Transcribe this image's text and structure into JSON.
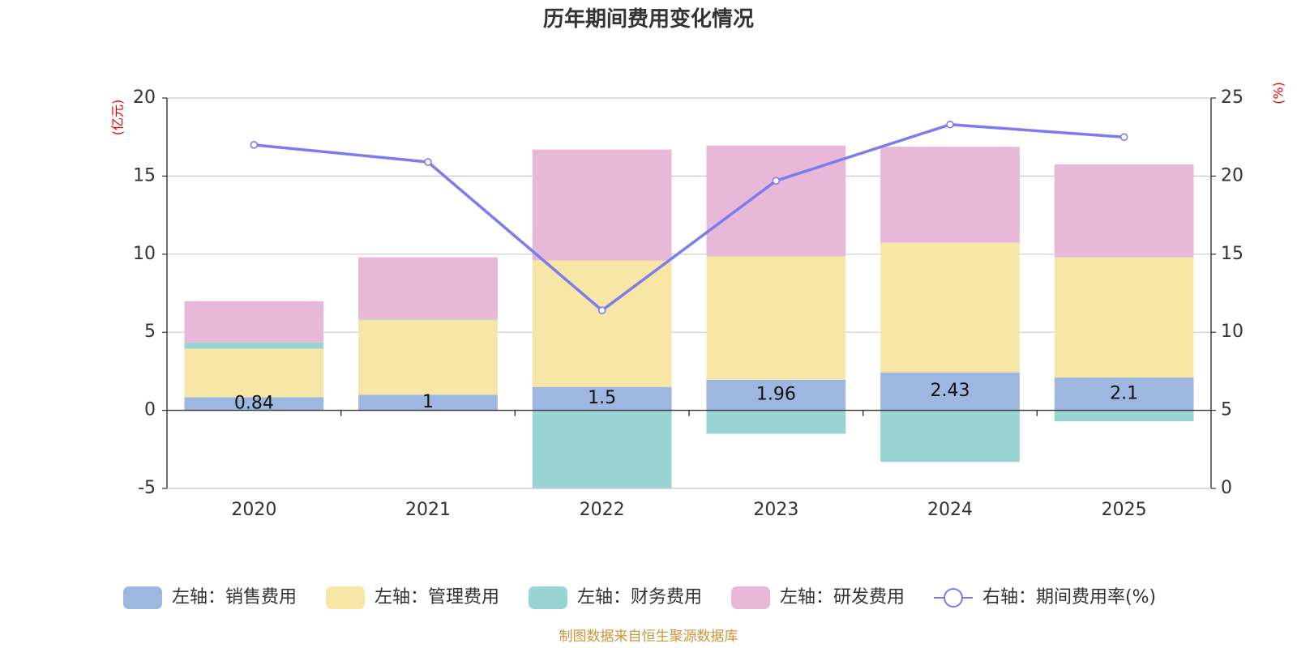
{
  "chart_data": {
    "type": "bar",
    "title": "历年期间费用变化情况",
    "categories": [
      "2020",
      "2021",
      "2022",
      "2023",
      "2024",
      "2025"
    ],
    "left_axis": {
      "unit": "(亿元)",
      "ylim": [
        -5,
        20
      ],
      "ticks": [
        -5,
        0,
        5,
        10,
        15,
        20
      ]
    },
    "right_axis": {
      "unit": "(%)",
      "ylim": [
        0,
        25
      ],
      "ticks": [
        0,
        5,
        10,
        15,
        20,
        25
      ]
    },
    "series": [
      {
        "name": "左轴：销售费用",
        "axis": "left",
        "stack": true,
        "color": "#9db7e1",
        "values": [
          0.84,
          1.0,
          1.5,
          1.96,
          2.43,
          2.1
        ],
        "labels": [
          "0.84",
          "1",
          "1.5",
          "1.96",
          "2.43",
          "2.1"
        ]
      },
      {
        "name": "左轴：管理费用",
        "axis": "left",
        "stack": true,
        "color": "#f7e6a6",
        "values": [
          3.1,
          4.8,
          8.1,
          7.9,
          8.3,
          7.7
        ]
      },
      {
        "name": "左轴：财务费用",
        "axis": "left",
        "stack": true,
        "color": "#98d4d4",
        "values": [
          0.4,
          0.05,
          -5.0,
          -1.5,
          -3.3,
          -0.7
        ]
      },
      {
        "name": "左轴：研发费用",
        "axis": "left",
        "stack": true,
        "color": "#e8b8d8",
        "values": [
          2.65,
          3.95,
          7.1,
          7.1,
          6.15,
          5.95
        ]
      },
      {
        "name": "右轴：期间费用率(%)",
        "axis": "right",
        "type": "line",
        "color": "#7b7cee",
        "values": [
          22.0,
          20.9,
          11.4,
          19.7,
          23.3,
          22.5
        ]
      }
    ],
    "grid": true,
    "legend_position": "bottom"
  },
  "source": "制图数据来自恒生聚源数据库"
}
